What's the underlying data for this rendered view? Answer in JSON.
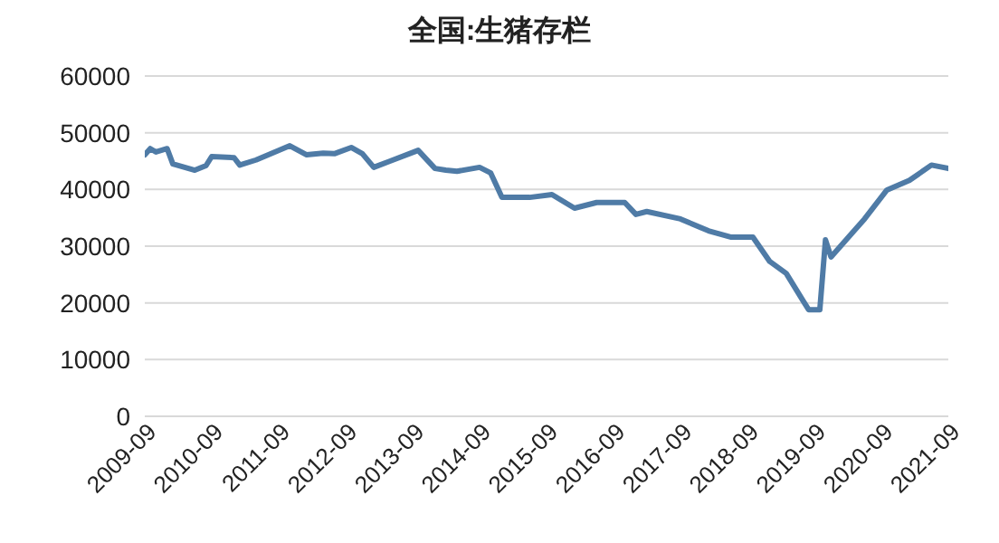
{
  "chart_data": {
    "type": "line",
    "title": "全国:生猪存栏",
    "x": [
      "2009-09",
      "2009-10",
      "2009-11",
      "2010-01",
      "2010-02",
      "2010-06",
      "2010-08",
      "2010-09",
      "2011-01",
      "2011-02",
      "2011-05",
      "2011-11",
      "2012-02",
      "2012-05",
      "2012-07",
      "2012-10",
      "2012-12",
      "2013-02",
      "2013-05",
      "2013-10",
      "2014-01",
      "2014-03",
      "2014-05",
      "2014-09",
      "2014-11",
      "2015-01",
      "2015-06",
      "2015-10",
      "2016-02",
      "2016-06",
      "2016-11",
      "2017-01",
      "2017-03",
      "2017-09",
      "2018-02",
      "2018-06",
      "2018-10",
      "2019-01",
      "2019-04",
      "2019-07",
      "2019-08",
      "2019-10",
      "2019-11",
      "2019-12",
      "2020-06",
      "2020-10",
      "2021-02",
      "2021-06",
      "2021-09"
    ],
    "series": [
      {
        "color": "#4f7ba6",
        "values": [
          46100,
          47200,
          46600,
          47200,
          44500,
          43400,
          44200,
          45800,
          45600,
          44300,
          45200,
          47700,
          46100,
          46400,
          46300,
          47400,
          46300,
          43900,
          45000,
          46900,
          43700,
          43400,
          43200,
          43900,
          42900,
          38600,
          38600,
          39100,
          36700,
          37700,
          37700,
          35600,
          36100,
          34800,
          32700,
          31600,
          31600,
          27300,
          25200,
          20400,
          18800,
          18800,
          31100,
          28100,
          34800,
          39900,
          41600,
          44300,
          43700
        ]
      }
    ],
    "xlim": [
      "2009-09",
      "2021-09"
    ],
    "xticks": [
      "2009-09",
      "2010-09",
      "2011-09",
      "2012-09",
      "2013-09",
      "2014-09",
      "2015-09",
      "2016-09",
      "2017-09",
      "2018-09",
      "2019-09",
      "2020-09",
      "2021-09"
    ],
    "ylim": [
      0,
      60000
    ],
    "yticks": [
      0,
      10000,
      20000,
      30000,
      40000,
      50000,
      60000
    ],
    "grid": "y",
    "legend": false,
    "marker": "none",
    "line_style": "solid"
  }
}
